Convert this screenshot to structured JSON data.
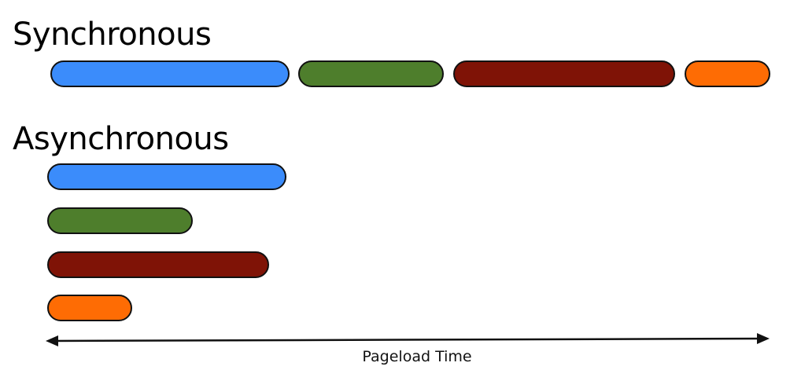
{
  "sections": {
    "sync_title": "Synchronous",
    "async_title": "Asynchronous"
  },
  "tasks": [
    {
      "color": "#3b8cfb"
    },
    {
      "color": "#4e7e2c"
    },
    {
      "color": "#7f1306"
    },
    {
      "color": "#fe6c04"
    }
  ],
  "axis": {
    "label": "Pageload Time",
    "arrow": "double-headed",
    "color": "#111111"
  }
}
